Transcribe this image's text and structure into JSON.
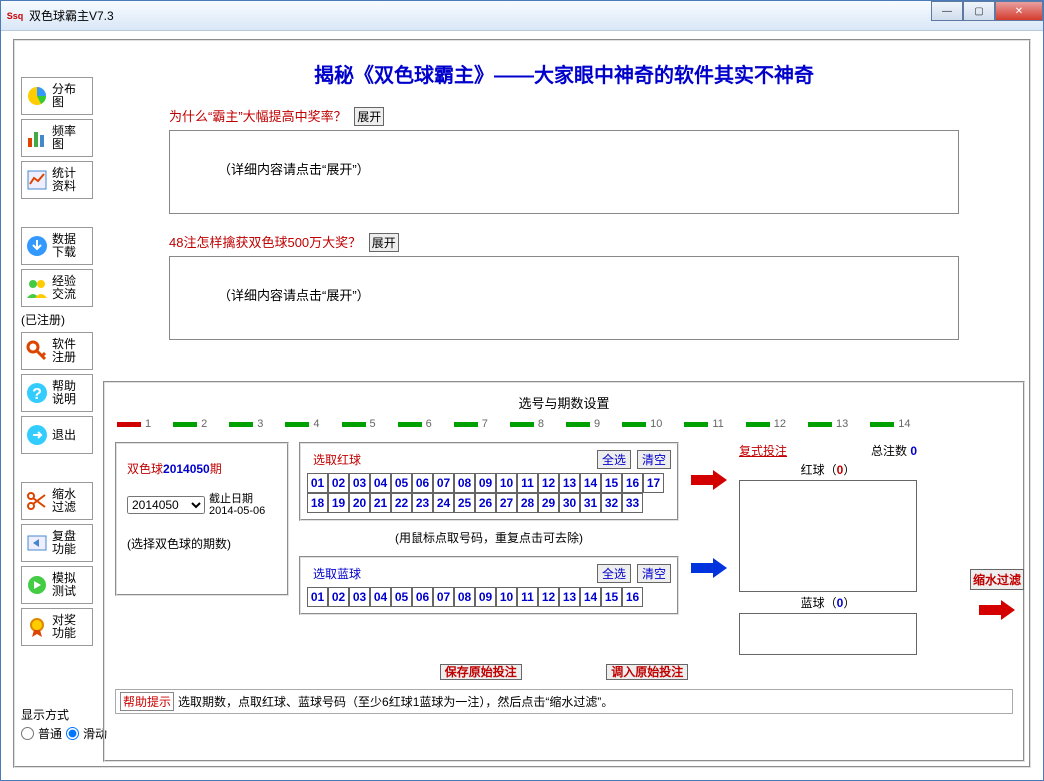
{
  "window": {
    "title": "双色球霸主V7.3"
  },
  "sidebar": {
    "buttons1": [
      {
        "l1": "分布",
        "l2": "图",
        "icon": "chart-pie"
      },
      {
        "l1": "频率",
        "l2": "图",
        "icon": "chart-bar"
      },
      {
        "l1": "统计",
        "l2": "资料",
        "icon": "stats"
      }
    ],
    "buttons2": [
      {
        "l1": "数据",
        "l2": "下载",
        "icon": "download"
      },
      {
        "l1": "经验",
        "l2": "交流",
        "icon": "people"
      }
    ],
    "registered_label": "(已注册)",
    "buttons3": [
      {
        "l1": "软件",
        "l2": "注册",
        "icon": "key"
      },
      {
        "l1": "帮助",
        "l2": "说明",
        "icon": "help"
      },
      {
        "l1": "退出",
        "l2": "",
        "icon": "exit"
      }
    ],
    "buttons4": [
      {
        "l1": "缩水",
        "l2": "过滤",
        "icon": "scissors"
      },
      {
        "l1": "复盘",
        "l2": "功能",
        "icon": "replay"
      },
      {
        "l1": "模拟",
        "l2": "测试",
        "icon": "sim"
      },
      {
        "l1": "对奖",
        "l2": "功能",
        "icon": "prize"
      }
    ],
    "display_mode": {
      "title": "显示方式",
      "opt1": "普通",
      "opt2": "滑动",
      "selected": "滑动"
    }
  },
  "upper": {
    "heading": "揭秘《双色球霸主》——大家眼中神奇的软件其实不神奇",
    "heading_color": "#0000cc",
    "q1": "为什么“霸主”大幅提高中奖率？",
    "q2": "48注怎样擒获双色球500万大奖？",
    "expand": "展开",
    "detail": "（详细内容请点击“展开”）"
  },
  "lower": {
    "title": "选号与期数设置",
    "track": {
      "segments": [
        {
          "n": "1",
          "c": "red"
        },
        {
          "n": "2",
          "c": "green"
        },
        {
          "n": "3",
          "c": "green"
        },
        {
          "n": "4",
          "c": "green"
        },
        {
          "n": "5",
          "c": "green"
        },
        {
          "n": "6",
          "c": "green"
        },
        {
          "n": "7",
          "c": "green"
        },
        {
          "n": "8",
          "c": "green"
        },
        {
          "n": "9",
          "c": "green"
        },
        {
          "n": "10",
          "c": "green"
        },
        {
          "n": "11",
          "c": "green"
        },
        {
          "n": "12",
          "c": "green"
        },
        {
          "n": "13",
          "c": "green"
        },
        {
          "n": "14",
          "c": "green"
        }
      ]
    },
    "period": {
      "prefix": "双色球",
      "value": "2014050",
      "suffix": "期",
      "deadline_label": "截止日期",
      "deadline": "2014-05-06",
      "note": "(选择双色球的期数)",
      "options": [
        "2014050"
      ]
    },
    "red": {
      "title": "选取红球",
      "all": "全选",
      "clear": "清空",
      "nums": [
        "01",
        "02",
        "03",
        "04",
        "05",
        "06",
        "07",
        "08",
        "09",
        "10",
        "11",
        "12",
        "13",
        "14",
        "15",
        "16",
        "17",
        "18",
        "19",
        "20",
        "21",
        "22",
        "23",
        "24",
        "25",
        "26",
        "27",
        "28",
        "29",
        "30",
        "31",
        "32",
        "33"
      ],
      "color": "#c00000"
    },
    "blue": {
      "title": "选取蓝球",
      "all": "全选",
      "clear": "清空",
      "nums": [
        "01",
        "02",
        "03",
        "04",
        "05",
        "06",
        "07",
        "08",
        "09",
        "10",
        "11",
        "12",
        "13",
        "14",
        "15",
        "16"
      ],
      "color": "#0000cc"
    },
    "hint_mid": "(用鼠标点取号码，重复点击可去除)",
    "result": {
      "header_l": "复式投注",
      "header_r_label": "总注数",
      "header_r_val": "0",
      "red_label_pre": "红球（",
      "red_count": "0",
      "red_label_post": "）",
      "blue_label_pre": "蓝球（",
      "blue_count": "0",
      "blue_label_post": "）"
    },
    "action_btn": "缩水过滤",
    "save_btn": "保存原始投注",
    "load_btn": "调入原始投注",
    "help": {
      "tag": "帮助提示",
      "text": "选取期数，点取红球、蓝球号码（至少6红球1蓝球为一注），然后点击“缩水过滤”。"
    },
    "colors": {
      "arrow_red": "#d40000",
      "arrow_blue": "#0033dd",
      "seg_green": "#00a000",
      "seg_red": "#d00000"
    }
  }
}
